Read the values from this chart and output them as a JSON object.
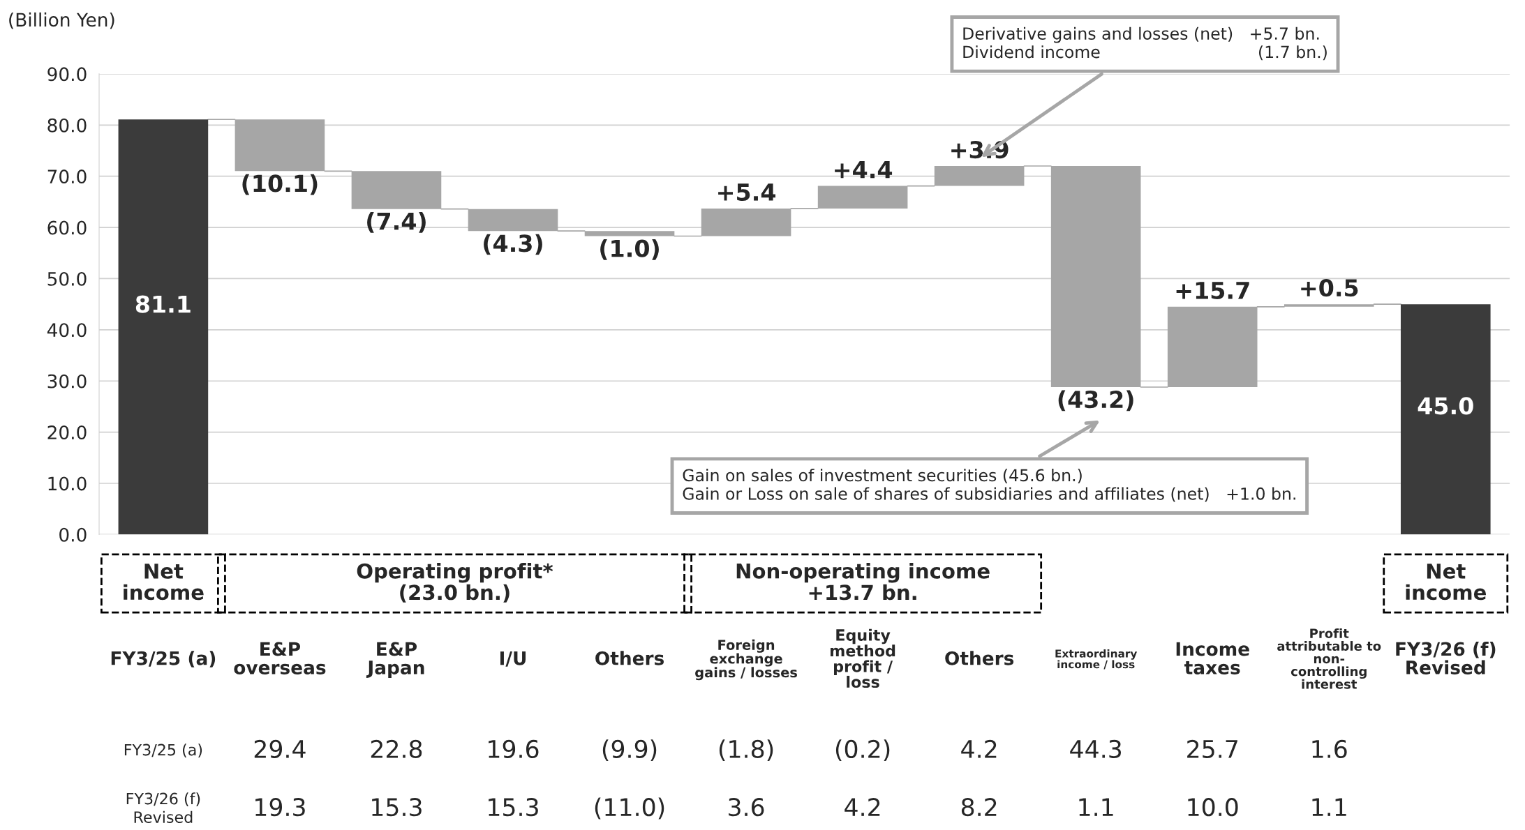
{
  "chart_data": {
    "type": "bar",
    "ylabel": "(Billion Yen)",
    "categories": [
      "FY3/25 (a)",
      "E&P\noverseas",
      "E&P\nJapan",
      "I/U",
      "Others",
      "Foreign\nexchange\ngains / losses",
      "Equity\nmethod\nprofit /\nloss",
      "Others",
      "Extraordinary\nincome / loss",
      "Income\ntaxes",
      "Profit\nattributable to\nnon-\ncontrolling\ninterest",
      "FY3/26 (f)\nRevised"
    ],
    "base": [
      0,
      81.1,
      71.0,
      63.6,
      59.3,
      58.3,
      63.7,
      68.1,
      72.0,
      28.8,
      44.5,
      0
    ],
    "values": [
      81.1,
      -10.1,
      -7.4,
      -4.3,
      -1.0,
      5.4,
      4.4,
      3.9,
      -43.2,
      15.7,
      0.5,
      45.0
    ],
    "colors": [
      "#3b3b3b",
      "#a6a6a6",
      "#a6a6a6",
      "#a6a6a6",
      "#a6a6a6",
      "#a6a6a6",
      "#a6a6a6",
      "#a6a6a6",
      "#a6a6a6",
      "#a6a6a6",
      "#a6a6a6",
      "#3b3b3b"
    ],
    "value_labels": [
      "81.1",
      "(10.1)",
      "(7.4)",
      "(4.3)",
      "(1.0)",
      "+5.4",
      "+4.4",
      "+3.9",
      "(43.2)",
      "+15.7",
      "+0.5",
      "45.0"
    ],
    "ylim": [
      0,
      90
    ],
    "yticks": [
      {
        "value": 0,
        "label": "0.0"
      },
      {
        "value": 10,
        "label": "10.0"
      },
      {
        "value": 20,
        "label": "20.0"
      },
      {
        "value": 30,
        "label": "30.0"
      },
      {
        "value": 40,
        "label": "40.0"
      },
      {
        "value": 50,
        "label": "50.0"
      },
      {
        "value": 60,
        "label": "60.0"
      },
      {
        "value": 70,
        "label": "70.0"
      },
      {
        "value": 80,
        "label": "80.0"
      },
      {
        "value": 90,
        "label": "90.0"
      }
    ],
    "grid": "y",
    "annotations": [
      "Derivative gains and losses (net)   +5.7 bn.\nDividend income                              (1.7 bn.)",
      "Gain on sales of investment securities (45.6 bn.)\nGain or Loss on sale of shares of subsidiaries and affiliates (net)   +1.0 bn.",
      "Net\nincome",
      "Operating profit*\n(23.0 bn.)",
      "Non-operating income\n+13.7 bn.",
      "Net\nincome",
      "FY3/25 (a)",
      "29.4",
      "22.8",
      "19.6",
      "(9.9)",
      "(1.8)",
      "(0.2)",
      "4.2",
      "44.3",
      "25.7",
      "1.6",
      "FY3/26 (f)\nRevised",
      "19.3",
      "15.3",
      "15.3",
      "(11.0)",
      "3.6",
      "4.2",
      "8.2",
      "1.1",
      "10.0",
      "1.1"
    ]
  }
}
